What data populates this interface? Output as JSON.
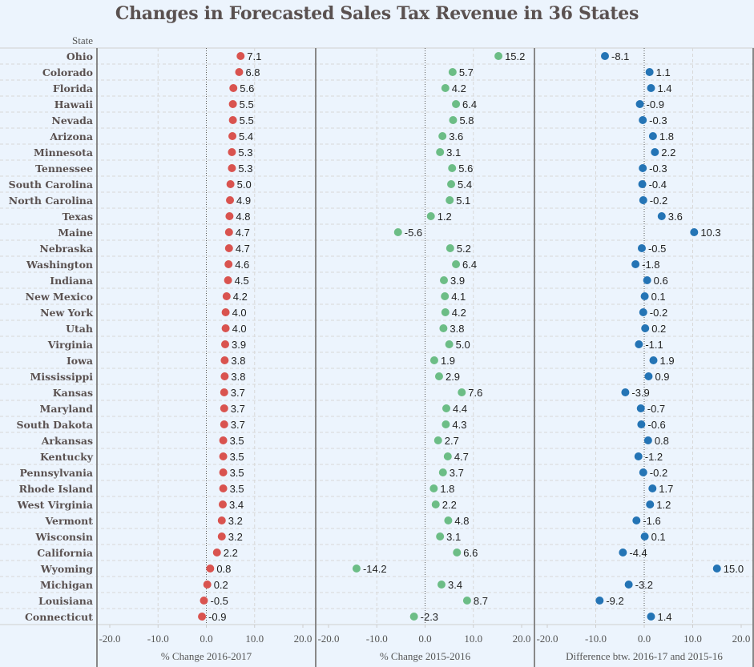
{
  "chart_data": {
    "type": "scatter",
    "title": "Changes in Forecasted Sales Tax Revenue in 36 States",
    "row_header": "State",
    "categories": [
      "Ohio",
      "Colorado",
      "Florida",
      "Hawaii",
      "Nevada",
      "Arizona",
      "Minnesota",
      "Tennessee",
      "South Carolina",
      "North Carolina",
      "Texas",
      "Maine",
      "Nebraska",
      "Washington",
      "Indiana",
      "New Mexico",
      "New York",
      "Utah",
      "Virginia",
      "Iowa",
      "Mississippi",
      "Kansas",
      "Maryland",
      "South Dakota",
      "Arkansas",
      "Kentucky",
      "Pennsylvania",
      "Rhode Island",
      "West Virginia",
      "Vermont",
      "Wisconsin",
      "California",
      "Wyoming",
      "Michigan",
      "Louisiana",
      "Connecticut"
    ],
    "xlim": [
      -20,
      20
    ],
    "x_ticks": [
      "-20.0",
      "-10.0",
      "0.0",
      "10.0",
      "20.0"
    ],
    "grid": true,
    "series": [
      {
        "name": "% Change 2016-2017",
        "xlabel": "% Change 2016-2017",
        "color": "#d9534f",
        "values": [
          7.1,
          6.8,
          5.6,
          5.5,
          5.5,
          5.4,
          5.3,
          5.3,
          5.0,
          4.9,
          4.8,
          4.7,
          4.7,
          4.6,
          4.5,
          4.2,
          4.0,
          4.0,
          3.9,
          3.8,
          3.8,
          3.7,
          3.7,
          3.7,
          3.5,
          3.5,
          3.5,
          3.5,
          3.4,
          3.2,
          3.2,
          2.2,
          0.8,
          0.2,
          -0.5,
          -0.9
        ]
      },
      {
        "name": "% Change 2015-2016",
        "xlabel": "% Change 2015-2016",
        "color": "#6cbd86",
        "values": [
          15.2,
          5.7,
          4.2,
          6.4,
          5.8,
          3.6,
          3.1,
          5.6,
          5.4,
          5.1,
          1.2,
          -5.6,
          5.2,
          6.4,
          3.9,
          4.1,
          4.2,
          3.8,
          5.0,
          1.9,
          2.9,
          7.6,
          4.4,
          4.3,
          2.7,
          4.7,
          3.7,
          1.8,
          2.2,
          4.8,
          3.1,
          6.6,
          -14.2,
          3.4,
          8.7,
          -2.3
        ]
      },
      {
        "name": "Difference btw. 2016-17 and 2015-16",
        "xlabel": "Difference btw. 2016-17 and 2015-16",
        "color": "#2474b5",
        "values": [
          -8.1,
          1.1,
          1.4,
          -0.9,
          -0.3,
          1.8,
          2.2,
          -0.3,
          -0.4,
          -0.2,
          3.6,
          10.3,
          -0.5,
          -1.8,
          0.6,
          0.1,
          -0.2,
          0.2,
          -1.1,
          1.9,
          0.9,
          -3.9,
          -0.7,
          -0.6,
          0.8,
          -1.2,
          -0.2,
          1.7,
          1.2,
          -1.6,
          0.1,
          -4.4,
          15.0,
          -3.2,
          -9.2,
          1.4
        ]
      }
    ]
  }
}
